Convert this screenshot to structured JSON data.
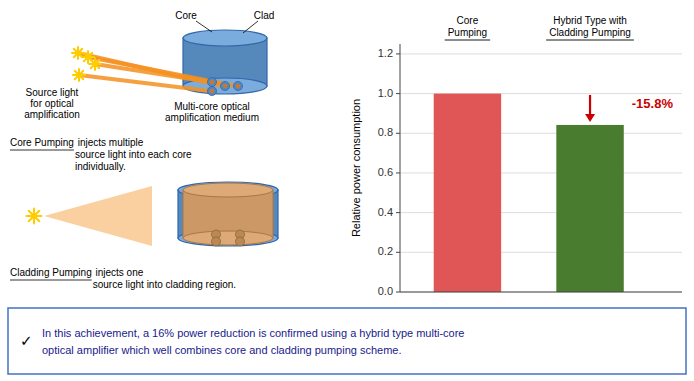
{
  "chart_data": {
    "type": "bar",
    "categories": [
      "Core\nPumping",
      "Hybrid Type with\nCladding Pumping"
    ],
    "values": [
      1.0,
      0.842
    ],
    "colors": [
      "#e05555",
      "#4a7c2f"
    ],
    "ylabel": "Relative power consumption",
    "ylim": [
      0,
      1.25
    ],
    "yticks": [
      {
        "value": 0,
        "label": "0.0"
      },
      0.2,
      0.4,
      0.6,
      0.8,
      {
        "value": 1,
        "label": "1.0"
      },
      1.2
    ],
    "grid": true,
    "annotation": {
      "text": "-15.8%",
      "color": "#cc0000"
    },
    "diagram_labels": {
      "core": "Core",
      "clad": "Clad",
      "source_light": "Source light\nfor optical\namplification",
      "multicore": "Multi-core optical\namplification medium",
      "core_pumping": "Core Pumping",
      "core_pumping_desc": " injects multiple\nsource light into each core\nindividually.",
      "cladding_pumping": "Cladding Pumping",
      "cladding_pumping_desc": " injects one\nsource light into cladding region."
    },
    "footer": {
      "bullet": "✓",
      "text": "In this achievement, a 16% power reduction is confirmed using a hybrid type multi-core\noptical amplifier which well combines core and cladding pumping scheme.",
      "color": "#1a1a8c",
      "border_color": "#4472c4"
    }
  }
}
